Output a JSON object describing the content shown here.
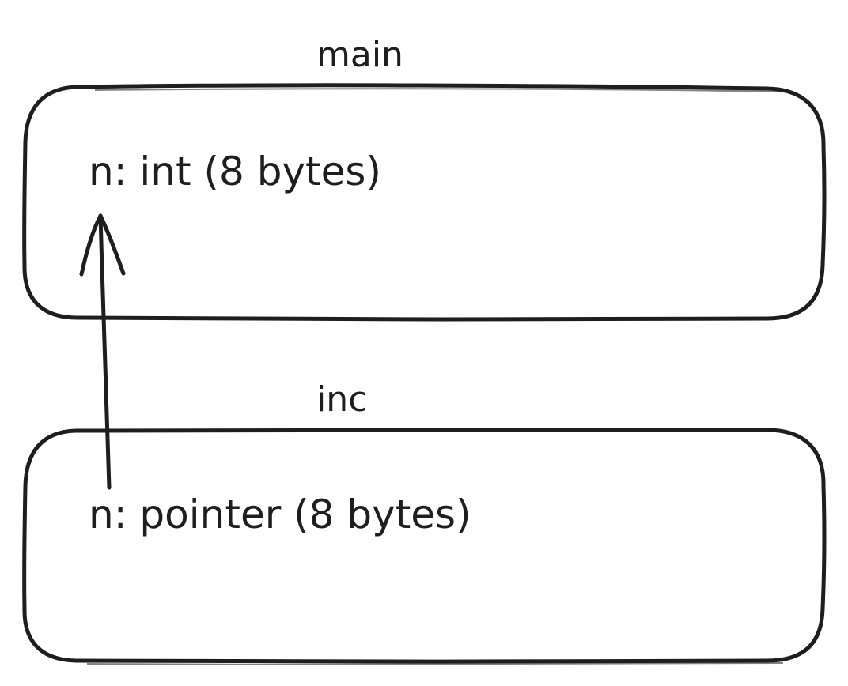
{
  "frames": [
    {
      "title": "main",
      "field": "n: int (8 bytes)"
    },
    {
      "title": "inc",
      "field": "n: pointer (8 bytes)"
    }
  ],
  "colors": {
    "stroke": "#1e1e1e",
    "background": "#ffffff"
  }
}
